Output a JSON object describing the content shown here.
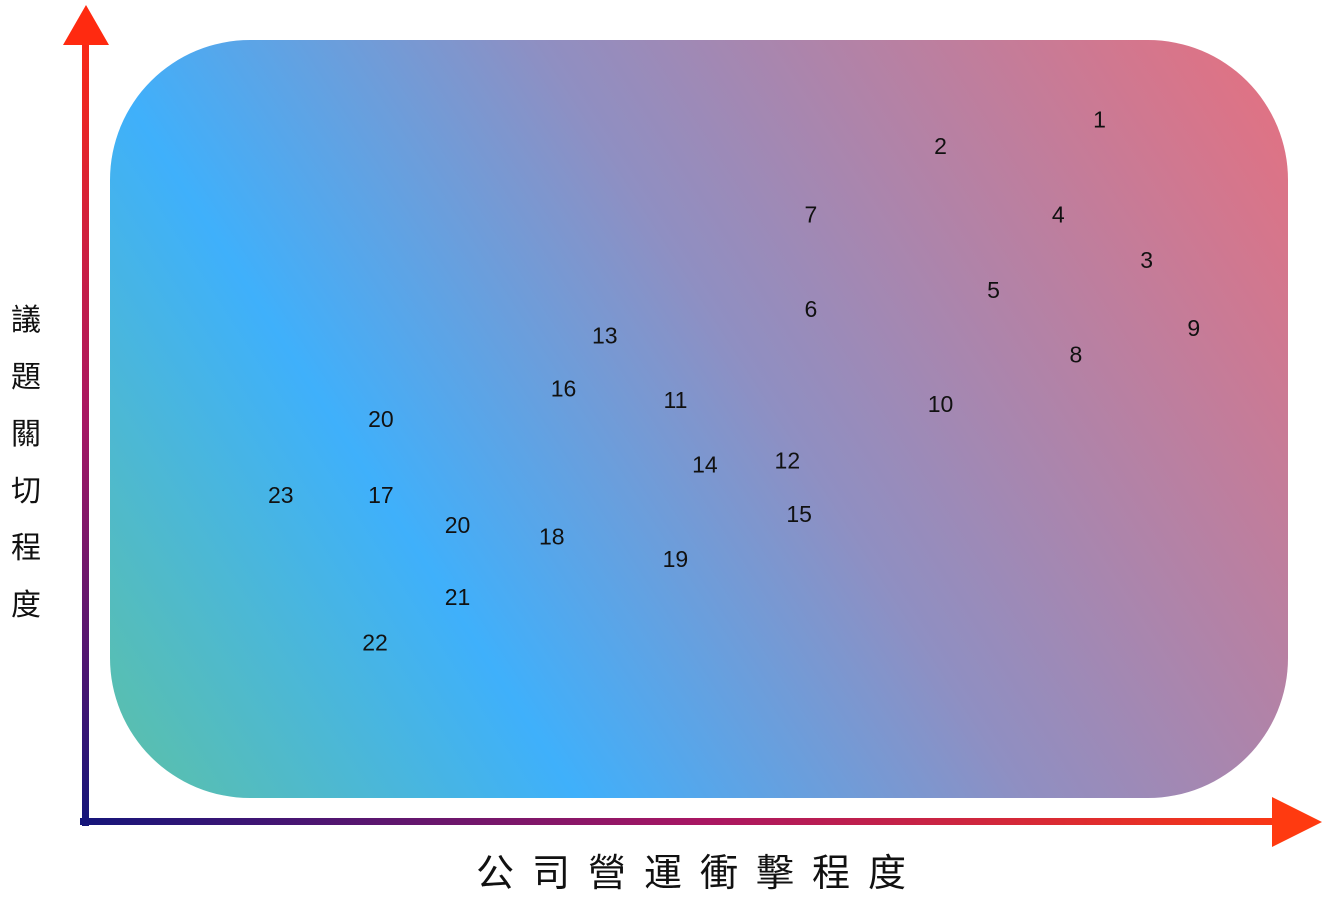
{
  "chart_data": {
    "type": "scatter",
    "xlabel": "公司營運衝擊程度",
    "ylabel": "議題關切程度",
    "xlim": [
      0,
      100
    ],
    "ylim": [
      0,
      100
    ],
    "grid": false,
    "points": [
      {
        "label": "1",
        "x": 84.0,
        "y": 89.5
      },
      {
        "label": "2",
        "x": 70.5,
        "y": 86.0
      },
      {
        "label": "3",
        "x": 88.0,
        "y": 71.0
      },
      {
        "label": "4",
        "x": 80.5,
        "y": 77.0
      },
      {
        "label": "5",
        "x": 75.0,
        "y": 67.0
      },
      {
        "label": "6",
        "x": 59.5,
        "y": 64.5
      },
      {
        "label": "7",
        "x": 59.5,
        "y": 77.0
      },
      {
        "label": "8",
        "x": 82.0,
        "y": 58.5
      },
      {
        "label": "9",
        "x": 92.0,
        "y": 62.0
      },
      {
        "label": "10",
        "x": 70.5,
        "y": 52.0
      },
      {
        "label": "11",
        "x": 48.0,
        "y": 52.5
      },
      {
        "label": "12",
        "x": 57.5,
        "y": 44.5
      },
      {
        "label": "13",
        "x": 42.0,
        "y": 61.0
      },
      {
        "label": "14",
        "x": 50.5,
        "y": 44.0
      },
      {
        "label": "15",
        "x": 58.5,
        "y": 37.5
      },
      {
        "label": "16",
        "x": 38.5,
        "y": 54.0
      },
      {
        "label": "17",
        "x": 23.0,
        "y": 40.0
      },
      {
        "label": "18",
        "x": 37.5,
        "y": 34.5
      },
      {
        "label": "19",
        "x": 48.0,
        "y": 31.5
      },
      {
        "label": "20",
        "x": 23.0,
        "y": 50.0
      },
      {
        "label": "20",
        "x": 29.5,
        "y": 36.0
      },
      {
        "label": "21",
        "x": 29.5,
        "y": 26.5
      },
      {
        "label": "22",
        "x": 22.5,
        "y": 20.5
      },
      {
        "label": "23",
        "x": 14.5,
        "y": 40.0
      }
    ]
  }
}
